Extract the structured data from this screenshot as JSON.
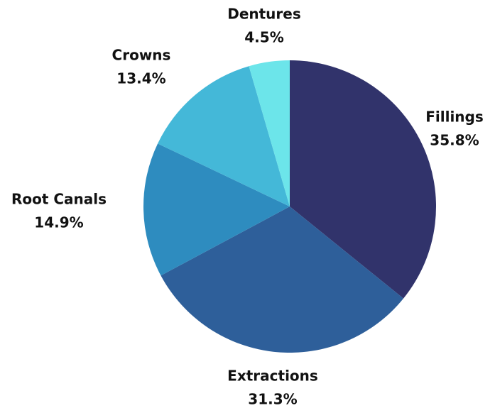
{
  "chart_data": {
    "type": "pie",
    "title": "",
    "slices": [
      {
        "label": "Fillings",
        "value": 35.8,
        "value_label": "35.8%",
        "color": "#31336B"
      },
      {
        "label": "Extractions",
        "value": 31.3,
        "value_label": "31.3%",
        "color": "#2E5F9A"
      },
      {
        "label": "Root Canals",
        "value": 14.9,
        "value_label": "14.9%",
        "color": "#2E8CBF"
      },
      {
        "label": "Crowns",
        "value": 13.4,
        "value_label": "13.4%",
        "color": "#44B8D8"
      },
      {
        "label": "Dentures",
        "value": 4.5,
        "value_label": "4.5%",
        "color": "#6CE5EA"
      }
    ],
    "start_angle": "12 o'clock",
    "direction": "clockwise",
    "legend": "none",
    "labels": "outside, bold, name above percentage"
  }
}
